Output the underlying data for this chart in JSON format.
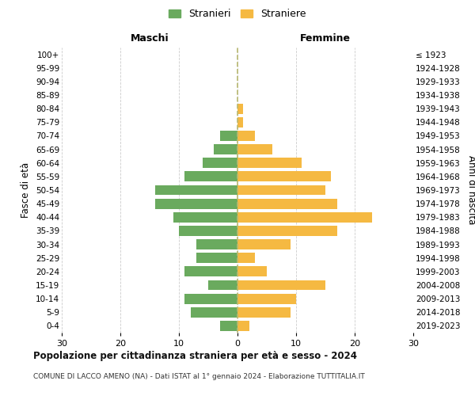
{
  "age_groups": [
    "0-4",
    "5-9",
    "10-14",
    "15-19",
    "20-24",
    "25-29",
    "30-34",
    "35-39",
    "40-44",
    "45-49",
    "50-54",
    "55-59",
    "60-64",
    "65-69",
    "70-74",
    "75-79",
    "80-84",
    "85-89",
    "90-94",
    "95-99",
    "100+"
  ],
  "birth_years": [
    "2019-2023",
    "2014-2018",
    "2009-2013",
    "2004-2008",
    "1999-2003",
    "1994-1998",
    "1989-1993",
    "1984-1988",
    "1979-1983",
    "1974-1978",
    "1969-1973",
    "1964-1968",
    "1959-1963",
    "1954-1958",
    "1949-1953",
    "1944-1948",
    "1939-1943",
    "1934-1938",
    "1929-1933",
    "1924-1928",
    "≤ 1923"
  ],
  "males": [
    3,
    8,
    9,
    5,
    9,
    7,
    7,
    10,
    11,
    14,
    14,
    9,
    6,
    4,
    3,
    0,
    0,
    0,
    0,
    0,
    0
  ],
  "females": [
    2,
    9,
    10,
    15,
    5,
    3,
    9,
    17,
    23,
    17,
    15,
    16,
    11,
    6,
    3,
    1,
    1,
    0,
    0,
    0,
    0
  ],
  "male_color": "#6aaa5e",
  "female_color": "#f5b942",
  "center_line_color": "#b8b870",
  "grid_color": "#cccccc",
  "background_color": "#ffffff",
  "title": "Popolazione per cittadinanza straniera per età e sesso - 2024",
  "subtitle": "COMUNE DI LACCO AMENO (NA) - Dati ISTAT al 1° gennaio 2024 - Elaborazione TUTTITALIA.IT",
  "label_maschi": "Maschi",
  "label_femmine": "Femmine",
  "ylabel_left": "Fasce di età",
  "ylabel_right": "Anni di nascita",
  "xlim": 30,
  "xticks": [
    -30,
    -20,
    -10,
    0,
    10,
    20,
    30
  ],
  "xticklabels": [
    "30",
    "20",
    "10",
    "0",
    "10",
    "20",
    "30"
  ],
  "legend_male": "Stranieri",
  "legend_female": "Straniere"
}
